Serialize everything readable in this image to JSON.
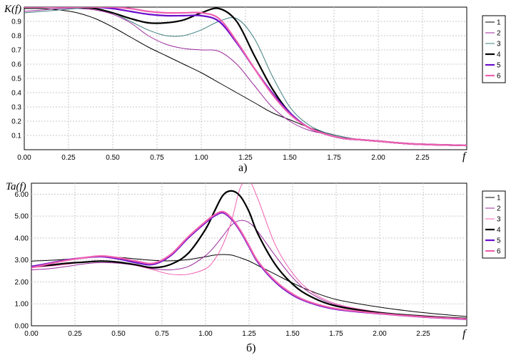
{
  "chart_data": [
    {
      "type": "line",
      "panel_caption": "а)",
      "ylabel": "K(f)",
      "xlabel": "f",
      "xlim": [
        0,
        2.5
      ],
      "ylim": [
        0,
        1.0
      ],
      "xticks": [
        "0.00",
        "0.25",
        "0.50",
        "0.75",
        "1.00",
        "1.25",
        "1.50",
        "1.75",
        "2.00",
        "2.25"
      ],
      "yticks": [
        "0.1",
        "0.2",
        "0.3",
        "0.4",
        "0.5",
        "0.6",
        "0.7",
        "0.8",
        "0.9"
      ],
      "grid": true,
      "legend": "right",
      "x": [
        0,
        0.1,
        0.2,
        0.3,
        0.4,
        0.5,
        0.6,
        0.7,
        0.8,
        0.9,
        1.0,
        1.1,
        1.2,
        1.3,
        1.4,
        1.5,
        1.6,
        1.7,
        1.8,
        1.9,
        2.0,
        2.2,
        2.5
      ],
      "series": [
        {
          "name": "1",
          "color": "#000000",
          "width": 1,
          "values": [
            0.99,
            0.99,
            0.98,
            0.96,
            0.92,
            0.86,
            0.79,
            0.72,
            0.66,
            0.6,
            0.54,
            0.47,
            0.4,
            0.33,
            0.26,
            0.21,
            0.16,
            0.12,
            0.09,
            0.07,
            0.06,
            0.04,
            0.03
          ]
        },
        {
          "name": "2",
          "color": "#9b2a9b",
          "width": 1,
          "values": [
            0.97,
            0.98,
            0.99,
            0.99,
            0.98,
            0.95,
            0.89,
            0.8,
            0.74,
            0.71,
            0.7,
            0.69,
            0.6,
            0.45,
            0.3,
            0.2,
            0.14,
            0.11,
            0.08,
            0.07,
            0.06,
            0.04,
            0.03
          ]
        },
        {
          "name": "3",
          "color": "#3f7f7f",
          "width": 1,
          "values": [
            0.96,
            0.97,
            0.98,
            0.99,
            0.99,
            0.96,
            0.9,
            0.84,
            0.8,
            0.8,
            0.84,
            0.9,
            0.92,
            0.78,
            0.52,
            0.3,
            0.18,
            0.12,
            0.09,
            0.07,
            0.06,
            0.04,
            0.03
          ]
        },
        {
          "name": "4",
          "color": "#000000",
          "width": 2.2,
          "values": [
            1.0,
            1.0,
            1.0,
            1.0,
            0.99,
            0.96,
            0.92,
            0.89,
            0.89,
            0.91,
            0.96,
            0.99,
            0.9,
            0.66,
            0.43,
            0.26,
            0.16,
            0.11,
            0.08,
            0.07,
            0.06,
            0.04,
            0.03
          ]
        },
        {
          "name": "5",
          "color": "#6a0dcc",
          "width": 2.2,
          "values": [
            1.0,
            1.0,
            1.0,
            1.0,
            1.0,
            0.99,
            0.97,
            0.95,
            0.94,
            0.94,
            0.94,
            0.9,
            0.75,
            0.57,
            0.4,
            0.26,
            0.16,
            0.11,
            0.08,
            0.07,
            0.06,
            0.04,
            0.03
          ]
        },
        {
          "name": "6",
          "color": "#f060b0",
          "width": 2.2,
          "values": [
            1.0,
            1.0,
            1.0,
            1.0,
            1.0,
            1.0,
            0.99,
            0.97,
            0.96,
            0.96,
            0.96,
            0.92,
            0.76,
            0.57,
            0.39,
            0.25,
            0.16,
            0.11,
            0.08,
            0.07,
            0.06,
            0.04,
            0.03
          ]
        }
      ]
    },
    {
      "type": "line",
      "panel_caption": "б)",
      "ylabel": "Ta(f)",
      "xlabel": "f",
      "xlim": [
        0,
        2.5
      ],
      "ylim": [
        0,
        6.5
      ],
      "xticks": [
        "0.00",
        "0.25",
        "0.50",
        "0.75",
        "1.00",
        "1.25",
        "1.50",
        "1.75",
        "2.00",
        "2.25"
      ],
      "yticks": [
        "0.00",
        "1.00",
        "2.00",
        "3.00",
        "4.00",
        "5.00",
        "6.00"
      ],
      "grid": true,
      "legend": "right",
      "x": [
        0,
        0.1,
        0.2,
        0.3,
        0.4,
        0.5,
        0.6,
        0.7,
        0.8,
        0.9,
        1.0,
        1.05,
        1.1,
        1.15,
        1.2,
        1.25,
        1.3,
        1.4,
        1.5,
        1.6,
        1.75,
        2.0,
        2.25,
        2.5
      ],
      "series": [
        {
          "name": "1",
          "color": "#000000",
          "width": 1,
          "values": [
            2.95,
            2.98,
            3.03,
            3.1,
            3.14,
            3.12,
            3.05,
            2.98,
            2.96,
            3.02,
            3.15,
            3.22,
            3.25,
            3.22,
            3.1,
            2.95,
            2.75,
            2.35,
            1.95,
            1.6,
            1.2,
            0.85,
            0.6,
            0.42
          ]
        },
        {
          "name": "2",
          "color": "#9b2a9b",
          "width": 1,
          "values": [
            2.55,
            2.6,
            2.7,
            2.82,
            2.88,
            2.85,
            2.75,
            2.6,
            2.55,
            2.7,
            3.2,
            3.6,
            4.1,
            4.6,
            4.8,
            4.7,
            4.3,
            3.2,
            2.2,
            1.5,
            0.95,
            0.6,
            0.42,
            0.32
          ]
        },
        {
          "name": "3",
          "color": "#f060b0",
          "width": 1,
          "values": [
            2.65,
            2.72,
            2.8,
            2.9,
            2.95,
            2.9,
            2.75,
            2.55,
            2.35,
            2.35,
            2.6,
            3.0,
            3.7,
            4.8,
            6.3,
            6.6,
            5.8,
            3.7,
            2.4,
            1.6,
            1.0,
            0.62,
            0.45,
            0.34
          ]
        },
        {
          "name": "4",
          "color": "#000000",
          "width": 2.2,
          "values": [
            2.7,
            2.76,
            2.85,
            2.9,
            2.95,
            2.9,
            2.78,
            2.65,
            2.8,
            3.3,
            4.4,
            5.2,
            5.95,
            6.15,
            5.9,
            5.2,
            4.2,
            2.8,
            1.9,
            1.35,
            0.9,
            0.6,
            0.44,
            0.33
          ]
        },
        {
          "name": "5",
          "color": "#6a0dcc",
          "width": 2.2,
          "values": [
            2.7,
            2.85,
            3.0,
            3.1,
            3.15,
            3.05,
            2.88,
            2.8,
            3.2,
            4.0,
            4.7,
            5.0,
            5.15,
            4.85,
            4.3,
            3.6,
            2.9,
            2.0,
            1.4,
            1.05,
            0.75,
            0.55,
            0.4,
            0.3
          ]
        },
        {
          "name": "6",
          "color": "#f060b0",
          "width": 2.2,
          "values": [
            2.65,
            2.82,
            2.98,
            3.1,
            3.18,
            3.1,
            2.95,
            2.85,
            3.25,
            4.05,
            4.75,
            5.05,
            5.2,
            4.9,
            4.35,
            3.65,
            2.95,
            2.05,
            1.45,
            1.08,
            0.78,
            0.56,
            0.41,
            0.31
          ]
        }
      ]
    }
  ]
}
